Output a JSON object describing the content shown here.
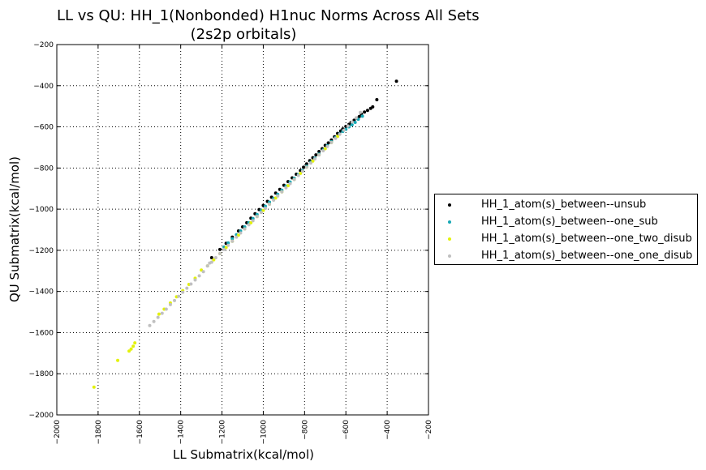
{
  "chart_data": {
    "type": "scatter",
    "title": "LL vs QU: HH_1(Nonbonded) H1nuc Norms Across All Sets",
    "subtitle": "(2s2p orbitals)",
    "xlabel": "LL Submatrix(kcal/mol)",
    "ylabel": "QU Submatrix(kcal/mol)",
    "xlim": [
      -2000,
      -200
    ],
    "ylim": [
      -2000,
      -200
    ],
    "xticks": [
      -2000,
      -1800,
      -1600,
      -1400,
      -1200,
      -1000,
      -800,
      -600,
      -400,
      -200
    ],
    "yticks": [
      -2000,
      -1800,
      -1600,
      -1400,
      -1200,
      -1000,
      -800,
      -600,
      -400,
      -200
    ],
    "xtick_labels": [
      "−2000",
      "−1800",
      "−1600",
      "−1400",
      "−1200",
      "−1000",
      "−800",
      "−600",
      "−400",
      "−200"
    ],
    "ytick_labels": [
      "−2000",
      "−1800",
      "−1600",
      "−1400",
      "−1200",
      "−1000",
      "−800",
      "−600",
      "−400",
      "−200"
    ],
    "grid": true,
    "legend_position": "center-right outside",
    "series": [
      {
        "name": "HH_1_atom(s)_between--unsub",
        "color": "#000000",
        "x": [
          -355,
          -450,
          -470,
          -480,
          -495,
          -510,
          -525,
          -535,
          -545,
          -560,
          -575,
          -585,
          -600,
          -615,
          -625,
          -640,
          -655,
          -670,
          -685,
          -700,
          -715,
          -730,
          -745,
          -760,
          -775,
          -790,
          -805,
          -820,
          -840,
          -860,
          -880,
          -900,
          -920,
          -940,
          -960,
          -980,
          -1000,
          -1020,
          -1040,
          -1060,
          -1080,
          -1100,
          -1120,
          -1150,
          -1180,
          -1210,
          -1250
        ],
        "y": [
          -378,
          -468,
          -503,
          -510,
          -520,
          -528,
          -538,
          -550,
          -558,
          -568,
          -578,
          -588,
          -598,
          -610,
          -620,
          -632,
          -648,
          -664,
          -678,
          -690,
          -706,
          -720,
          -736,
          -750,
          -764,
          -780,
          -796,
          -812,
          -830,
          -848,
          -866,
          -884,
          -904,
          -922,
          -942,
          -962,
          -982,
          -1002,
          -1022,
          -1044,
          -1066,
          -1086,
          -1106,
          -1136,
          -1166,
          -1196,
          -1236
        ]
      },
      {
        "name": "HH_1_atom(s)_between--one_sub",
        "color": "#17a8b5",
        "x": [
          -520,
          -540,
          -555,
          -570,
          -585,
          -600,
          -615,
          -630,
          -650,
          -670,
          -690,
          -710,
          -730,
          -750,
          -770,
          -790,
          -810,
          -830,
          -850,
          -870,
          -890,
          -910,
          -930,
          -950,
          -970,
          -990,
          -1010,
          -1030,
          -1050,
          -1070,
          -1090,
          -1110,
          -1130,
          -1150,
          -1170,
          -1190
        ],
        "y": [
          -548,
          -563,
          -578,
          -590,
          -600,
          -612,
          -622,
          -634,
          -652,
          -672,
          -692,
          -712,
          -732,
          -752,
          -772,
          -792,
          -812,
          -832,
          -850,
          -868,
          -888,
          -908,
          -928,
          -948,
          -966,
          -986,
          -1006,
          -1026,
          -1046,
          -1066,
          -1086,
          -1106,
          -1124,
          -1144,
          -1164,
          -1184
        ]
      },
      {
        "name": "HH_1_atom(s)_between--one_two_disub",
        "color": "#e3f20a",
        "x": [
          -1820,
          -1705,
          -1650,
          -1640,
          -1630,
          -1622,
          -1505,
          -1480,
          -1450,
          -1420,
          -1390,
          -1360,
          -1330,
          -1300,
          -1270,
          -1240,
          -1210,
          -1180,
          -1150,
          -1120,
          -1090,
          -1060,
          -1030,
          -1000,
          -970,
          -940,
          -910,
          -880,
          -850,
          -820,
          -790,
          -760,
          -730,
          -700,
          -670,
          -640
        ],
        "y": [
          -1865,
          -1735,
          -1690,
          -1680,
          -1666,
          -1650,
          -1510,
          -1486,
          -1456,
          -1426,
          -1396,
          -1366,
          -1336,
          -1296,
          -1276,
          -1246,
          -1216,
          -1186,
          -1156,
          -1126,
          -1096,
          -1066,
          -1036,
          -1006,
          -976,
          -946,
          -916,
          -886,
          -856,
          -826,
          -796,
          -766,
          -736,
          -706,
          -676,
          -646
        ]
      },
      {
        "name": "HH_1_atom(s)_between--one_one_disub",
        "color": "#c0c0c0",
        "x": [
          -1550,
          -1530,
          -1510,
          -1490,
          -1470,
          -1450,
          -1430,
          -1410,
          -1390,
          -1370,
          -1350,
          -1330,
          -1310,
          -1290,
          -1270,
          -1260,
          -1250,
          -1230,
          -1210,
          -1190,
          -1170,
          -1150,
          -1130,
          -1110,
          -1090,
          -1070,
          -1050,
          -1030,
          -1010,
          -990,
          -970,
          -950,
          -930,
          -910,
          -890,
          -870,
          -850,
          -830,
          -810,
          -790,
          -770,
          -750,
          -730,
          -710,
          -690,
          -670,
          -650,
          -630,
          -610,
          -590,
          -570,
          -550,
          -530
        ],
        "y": [
          -1566,
          -1546,
          -1526,
          -1506,
          -1486,
          -1464,
          -1444,
          -1424,
          -1404,
          -1384,
          -1364,
          -1344,
          -1324,
          -1304,
          -1276,
          -1262,
          -1258,
          -1236,
          -1216,
          -1196,
          -1176,
          -1156,
          -1136,
          -1116,
          -1096,
          -1076,
          -1056,
          -1036,
          -1016,
          -996,
          -976,
          -956,
          -936,
          -916,
          -896,
          -876,
          -856,
          -836,
          -816,
          -796,
          -776,
          -756,
          -736,
          -716,
          -696,
          -676,
          -656,
          -636,
          -616,
          -596,
          -576,
          -556,
          -530
        ]
      }
    ]
  }
}
